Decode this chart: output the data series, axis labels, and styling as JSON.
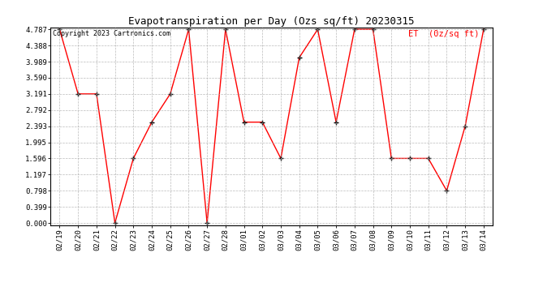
{
  "title": "Evapotranspiration per Day (Ozs sq/ft) 20230315",
  "copyright_text": "Copyright 2023 Cartronics.com",
  "legend_label": "ET  (0z/sq ft)",
  "dates": [
    "02/19",
    "02/20",
    "02/21",
    "02/22",
    "02/23",
    "02/24",
    "02/25",
    "02/26",
    "02/27",
    "02/28",
    "03/01",
    "03/02",
    "03/03",
    "03/04",
    "03/05",
    "03/06",
    "03/07",
    "03/08",
    "03/09",
    "03/10",
    "03/11",
    "03/12",
    "03/13",
    "03/14"
  ],
  "values": [
    4.787,
    3.191,
    3.191,
    0.0,
    1.596,
    2.493,
    3.191,
    4.787,
    0.0,
    4.787,
    2.493,
    2.493,
    1.596,
    4.09,
    4.787,
    2.493,
    4.787,
    4.787,
    1.596,
    1.596,
    1.596,
    0.798,
    2.393,
    4.787
  ],
  "line_color": "red",
  "marker_color": "black",
  "background_color": "#ffffff",
  "grid_color": "#aaaaaa",
  "ylim": [
    0.0,
    4.787
  ],
  "yticks": [
    0.0,
    0.399,
    0.798,
    1.197,
    1.596,
    1.995,
    2.393,
    2.792,
    3.191,
    3.59,
    3.989,
    4.388,
    4.787
  ],
  "title_fontsize": 9,
  "tick_fontsize": 6.5,
  "legend_fontsize": 7.5,
  "copyright_fontsize": 6
}
